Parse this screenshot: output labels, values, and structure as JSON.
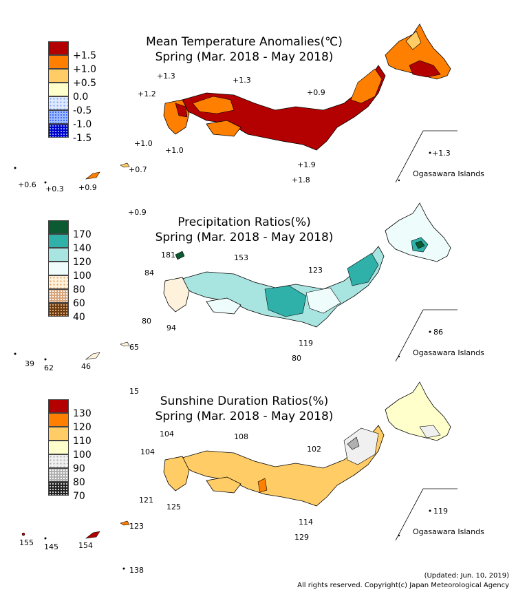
{
  "panels": [
    {
      "title_line1": "Mean Temperature Anomalies(℃)",
      "title_line2": "Spring (Mar. 2018 - May 2018)",
      "legend": [
        {
          "label": "+1.5",
          "color": "#b30000",
          "pattern": "solid"
        },
        {
          "label": "+1.0",
          "color": "#ff7f00",
          "pattern": "solid"
        },
        {
          "label": "+0.5",
          "color": "#ffcc66",
          "pattern": "solid"
        },
        {
          "label": "0.0",
          "color": "#ffffcc",
          "pattern": "solid"
        },
        {
          "label": "-0.5",
          "color": "#dfeaff",
          "pattern": "dots-light"
        },
        {
          "label": "-1.0",
          "color": "#9dbbff",
          "pattern": "dots"
        },
        {
          "label": "-1.5",
          "color": "#0000cc",
          "pattern": "dots-dense"
        }
      ],
      "station_values": [
        "+1.3",
        "+1.3",
        "+1.2",
        "+0.9",
        "+1.0",
        "+1.0",
        "+1.9",
        "+1.8",
        "+0.7",
        "+0.6",
        "+0.3",
        "+0.9",
        "+0.9",
        "+1.3"
      ],
      "inset_label": "Ogasawara Islands"
    },
    {
      "title_line1": "Precipitation Ratios(%)",
      "title_line2": "Spring (Mar. 2018 - May 2018)",
      "legend": [
        {
          "label": "170",
          "color": "#0b5a32",
          "pattern": "solid"
        },
        {
          "label": "140",
          "color": "#2fb0a8",
          "pattern": "solid"
        },
        {
          "label": "120",
          "color": "#a8e4e0",
          "pattern": "solid"
        },
        {
          "label": "100",
          "color": "#eefcfc",
          "pattern": "solid"
        },
        {
          "label": "80",
          "color": "#fff2dd",
          "pattern": "dots-light"
        },
        {
          "label": "60",
          "color": "#d8a47a",
          "pattern": "dots"
        },
        {
          "label": "40",
          "color": "#6b3a10",
          "pattern": "dots-dense"
        }
      ],
      "station_values": [
        "181",
        "153",
        "84",
        "123",
        "80",
        "94",
        "119",
        "80",
        "65",
        "39",
        "62",
        "46",
        "15",
        "86"
      ],
      "inset_label": "Ogasawara Islands"
    },
    {
      "title_line1": "Sunshine Duration Ratios(%)",
      "title_line2": "Spring (Mar. 2018 - May 2018)",
      "legend": [
        {
          "label": "130",
          "color": "#b30000",
          "pattern": "solid"
        },
        {
          "label": "120",
          "color": "#ff7f00",
          "pattern": "solid"
        },
        {
          "label": "110",
          "color": "#ffcc66",
          "pattern": "solid"
        },
        {
          "label": "100",
          "color": "#ffffcc",
          "pattern": "solid"
        },
        {
          "label": "90",
          "color": "#f0f0f0",
          "pattern": "dots-light"
        },
        {
          "label": "80",
          "color": "#b0b0b0",
          "pattern": "dots"
        },
        {
          "label": "70",
          "color": "#222222",
          "pattern": "dots-dense"
        }
      ],
      "station_values": [
        "104",
        "108",
        "104",
        "102",
        "121",
        "125",
        "114",
        "129",
        "123",
        "155",
        "145",
        "154",
        "138",
        "119"
      ],
      "inset_label": "Ogasawara Islands"
    }
  ],
  "footer": {
    "updated": "(Updated: Jun. 10, 2019)",
    "copyright": "All rights reserved. Copyright(c) Japan Meteorological Agency"
  }
}
